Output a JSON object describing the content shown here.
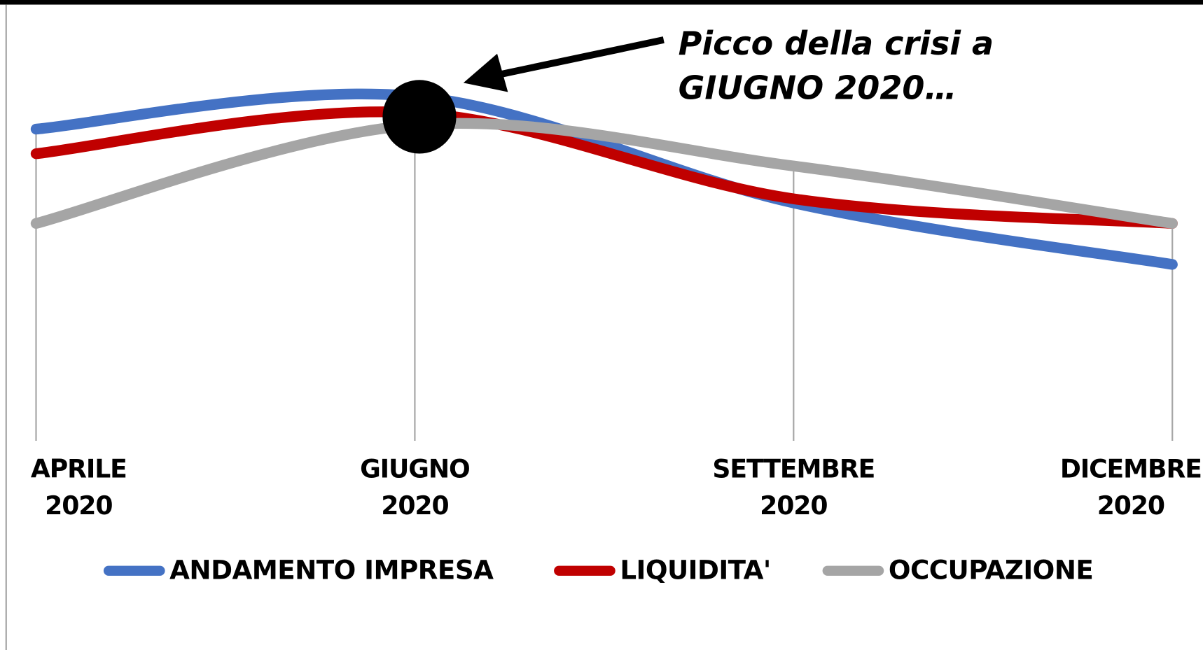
{
  "chart_data": {
    "type": "line",
    "categories": [
      "APRILE 2020",
      "GIUGNO 2020",
      "SETTEMBRE 2020",
      "DICEMBRE 2020"
    ],
    "series": [
      {
        "name": "ANDAMENTO IMPRESA",
        "color": "#4472c4",
        "values": [
          76,
          84,
          58,
          43
        ]
      },
      {
        "name": "LIQUIDITA'",
        "color": "#c00000",
        "values": [
          70,
          80,
          59,
          53
        ]
      },
      {
        "name": "OCCUPAZIONE",
        "color": "#a5a5a5",
        "values": [
          53,
          77,
          67,
          53
        ]
      }
    ],
    "ylim": [
      0,
      100
    ],
    "smooth": true,
    "legend": "bottom",
    "annotation": {
      "text": "Picco della crisi a\nGIUGNO 2020…",
      "category": 1
    }
  }
}
